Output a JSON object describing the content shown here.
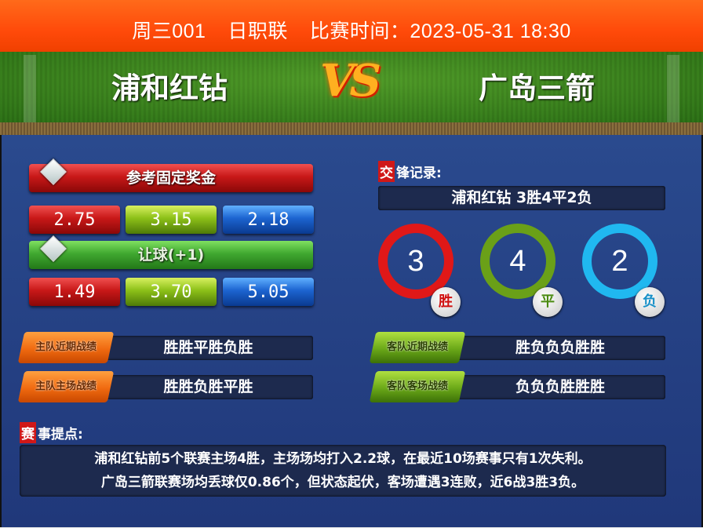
{
  "header": {
    "match_code": "周三001",
    "league": "日职联",
    "time_label": "比赛时间：2023-05-31 18:30"
  },
  "teams": {
    "home": "浦和红钻",
    "vs": "VS",
    "away": "广岛三箭"
  },
  "odds": {
    "title": "参考固定奖金",
    "fixed": [
      "2.75",
      "3.15",
      "2.18"
    ],
    "handicap_title": "让球(+1)",
    "handicap": [
      "1.49",
      "3.70",
      "5.05"
    ]
  },
  "home_form": {
    "recent_label": "主队近期战绩",
    "recent": "胜胜平胜负胜",
    "home_label": "主队主场战绩",
    "home": "胜胜负胜平胜"
  },
  "away_form": {
    "recent_label": "客队近期战绩",
    "recent": "胜负负负胜胜",
    "away_label": "客队客场战绩",
    "away": "负负负胜胜胜"
  },
  "h2h": {
    "tag": "交",
    "title": "锋记录:",
    "summary": "浦和红钻  3胜4平2负",
    "wins": "3",
    "draws": "4",
    "losses": "2",
    "win_label": "胜",
    "draw_label": "平",
    "loss_label": "负",
    "colors": {
      "win": "#e01818",
      "draw": "#6aa018",
      "loss": "#20b8f0"
    }
  },
  "tips": {
    "tag": "赛",
    "title": "事提点:",
    "line1": "浦和红钻前5个联赛主场4胜，主场场均打入2.2球，在最近10场赛事只有1次失利。",
    "line2": "广岛三箭联赛场均丢球仅0.86个，但状态起伏，客场遭遇3连败，近6战3胜3负。"
  }
}
